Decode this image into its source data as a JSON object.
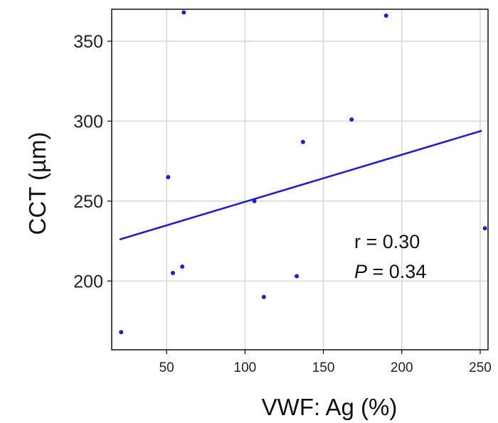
{
  "chart_data": {
    "type": "scatter",
    "xlabel": "VWF: Ag (%)",
    "ylabel": "CCT (µm)",
    "xlim": [
      15,
      255
    ],
    "ylim": [
      157,
      370
    ],
    "x_ticks": [
      50,
      100,
      150,
      200,
      250
    ],
    "y_ticks": [
      200,
      250,
      300,
      350
    ],
    "grid": true,
    "points": [
      {
        "x": 21,
        "y": 168
      },
      {
        "x": 51,
        "y": 265
      },
      {
        "x": 54,
        "y": 205
      },
      {
        "x": 60,
        "y": 209
      },
      {
        "x": 61,
        "y": 368
      },
      {
        "x": 106,
        "y": 250
      },
      {
        "x": 112,
        "y": 190
      },
      {
        "x": 133,
        "y": 203
      },
      {
        "x": 137,
        "y": 287
      },
      {
        "x": 168,
        "y": 301
      },
      {
        "x": 190,
        "y": 366
      },
      {
        "x": 253,
        "y": 233
      }
    ],
    "regression": {
      "x": [
        20,
        251
      ],
      "y": [
        226,
        294
      ]
    },
    "colors": {
      "points": "#1f1fd0",
      "line": "#1f1fd0",
      "grid": "#d9d9d9",
      "axis": "#000000"
    },
    "annotation": {
      "r_label": "r = 0.30",
      "p_symbol": "P",
      "p_rest": " = 0.34"
    }
  }
}
